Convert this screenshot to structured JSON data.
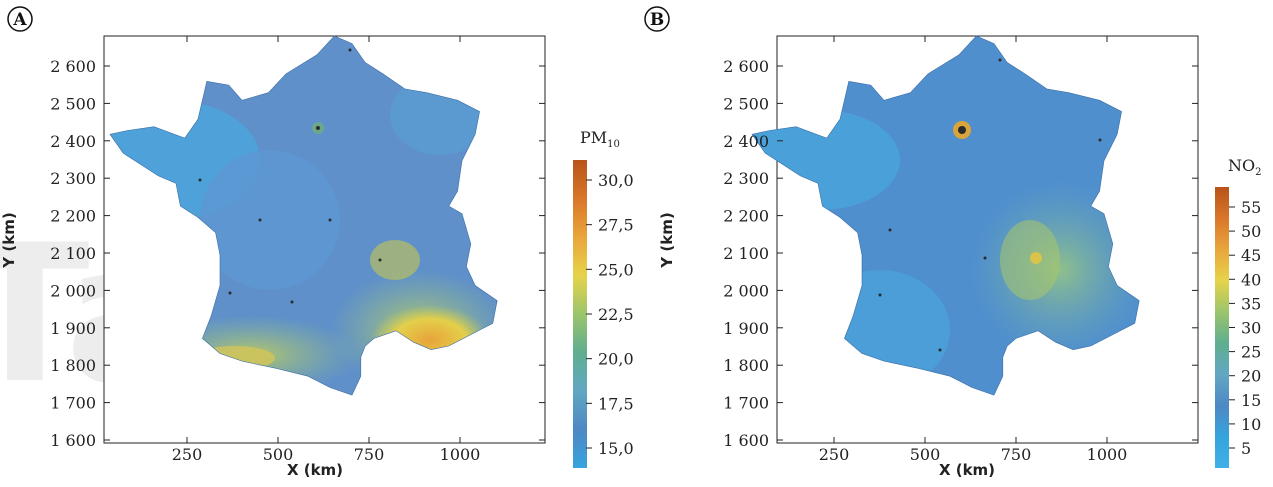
{
  "panels": [
    {
      "letter": "A",
      "xlabel": "X (km)",
      "ylabel": "Y (km)",
      "x_ticks": [
        "250",
        "500",
        "750",
        "1000"
      ],
      "y_ticks": [
        "2 600",
        "2 500",
        "2 400",
        "2 300",
        "2 200",
        "2 100",
        "2 000",
        "1 900",
        "1 800",
        "1 700",
        "1 600"
      ],
      "colorbar": {
        "title_main": "PM",
        "title_sub": "10",
        "labels": [
          "30,0",
          "27,5",
          "25,0",
          "22,5",
          "20,0",
          "17,5",
          "15,0"
        ],
        "colors": [
          "#b85318",
          "#d9762a",
          "#e9a53c",
          "#e7d34a",
          "#9bc56b",
          "#5fae8f",
          "#62a7c2",
          "#4e88c4",
          "#35a4de"
        ]
      }
    },
    {
      "letter": "B",
      "xlabel": "X (km)",
      "ylabel": "Y (km)",
      "x_ticks": [
        "250",
        "500",
        "750",
        "1000"
      ],
      "y_ticks": [
        "2 600",
        "2 500",
        "2 400",
        "2 300",
        "2 200",
        "2 100",
        "2 000",
        "1 900",
        "1 800",
        "1 700",
        "1 600"
      ],
      "colorbar": {
        "title_main": "NO",
        "title_sub": "2",
        "labels": [
          "55",
          "50",
          "45",
          "40",
          "35",
          "30",
          "25",
          "20",
          "15",
          "10",
          "5"
        ],
        "colors": [
          "#b85318",
          "#d9762a",
          "#e9a53c",
          "#e7d34a",
          "#9bc56b",
          "#5fae8f",
          "#62a7c2",
          "#4e88c4",
          "#35a4de",
          "#3fb0e6"
        ]
      }
    }
  ],
  "map_colors": {
    "base_A": "#5f90c9",
    "west_A": "#4fa2d9",
    "south_A": "#7fb893",
    "alps_A": "#dfbd41",
    "base_B": "#4f8fcd",
    "east_B": "#6aa5b8",
    "hotspot": "#2b2b2b"
  }
}
